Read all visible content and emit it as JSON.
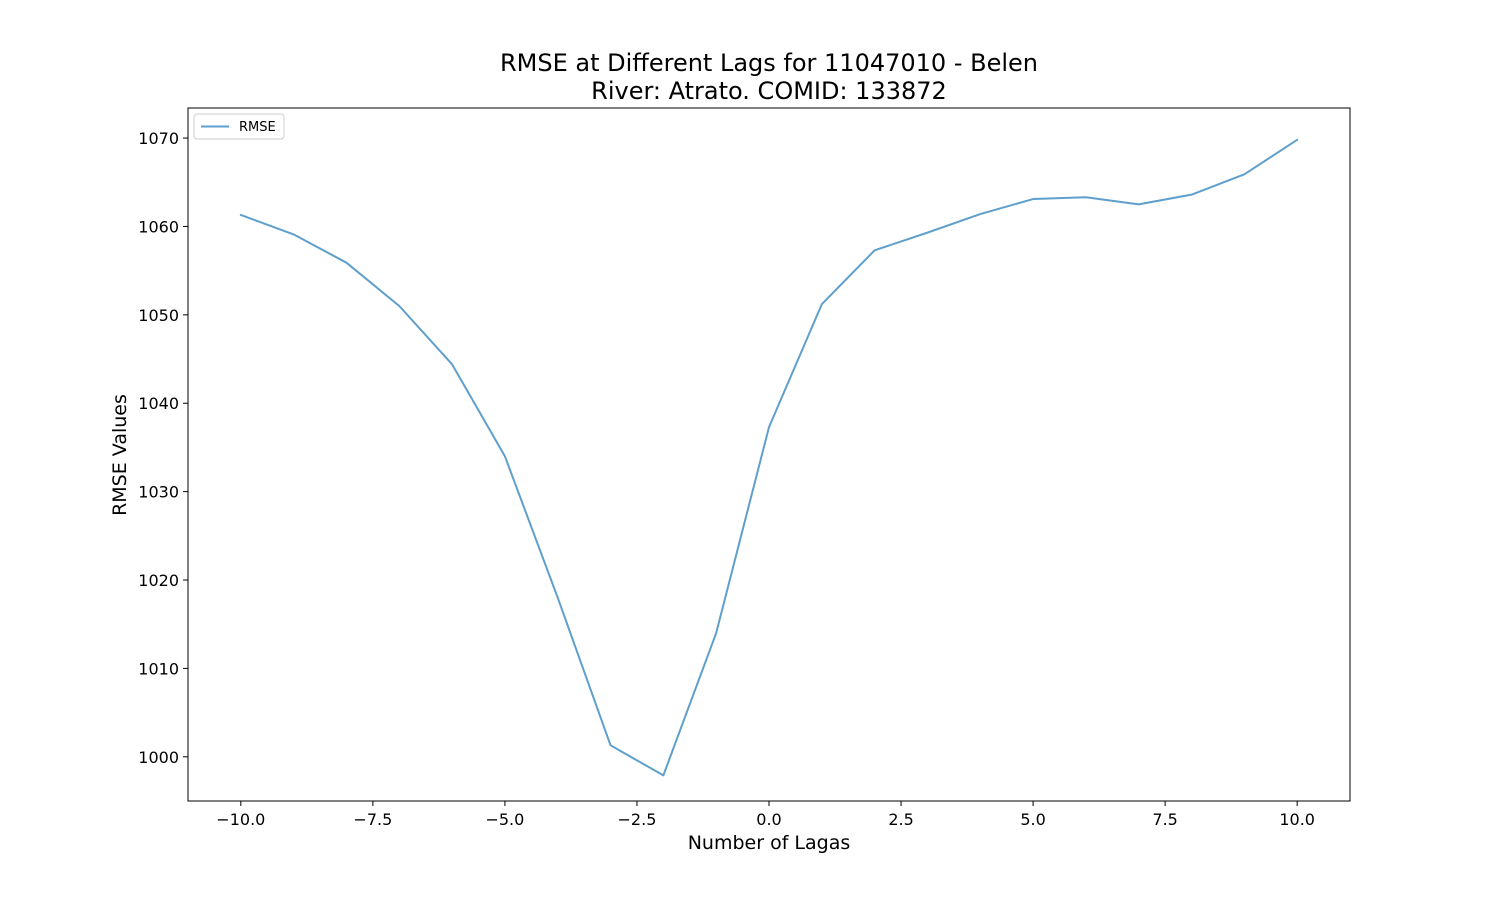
{
  "chart_data": {
    "type": "line",
    "title": "RMSE at Different Lags for 11047010 - Belen",
    "subtitle": "River: Atrato. COMID: 133872",
    "xlabel": "Number of Lagas",
    "ylabel": "RMSE Values",
    "xlim": [
      -11,
      11
    ],
    "ylim": [
      995,
      1073.4
    ],
    "xticks": [
      -10.0,
      -7.5,
      -5.0,
      -2.5,
      0.0,
      2.5,
      5.0,
      7.5,
      10.0
    ],
    "xtick_labels": [
      "−10.0",
      "−7.5",
      "−5.0",
      "−2.5",
      "0.0",
      "2.5",
      "5.0",
      "7.5",
      "10.0"
    ],
    "yticks": [
      1000,
      1010,
      1020,
      1030,
      1040,
      1050,
      1060,
      1070
    ],
    "ytick_labels": [
      "1000",
      "1010",
      "1020",
      "1030",
      "1040",
      "1050",
      "1060",
      "1070"
    ],
    "grid": false,
    "legend_position": "top-left",
    "series": [
      {
        "name": "RMSE",
        "color": "#5f9fcc",
        "x": [
          -10,
          -9,
          -8,
          -7,
          -6,
          -5,
          -4,
          -3,
          -2,
          -1,
          0,
          1,
          2,
          3,
          4,
          5,
          6,
          7,
          8,
          9,
          10
        ],
        "y": [
          1061.3,
          1059.1,
          1055.9,
          1051.0,
          1044.4,
          1034.0,
          1018.0,
          1001.3,
          997.9,
          1014.0,
          1037.3,
          1051.2,
          1057.3,
          1059.3,
          1061.4,
          1063.1,
          1063.3,
          1062.5,
          1063.6,
          1065.9,
          1069.8
        ]
      }
    ]
  }
}
